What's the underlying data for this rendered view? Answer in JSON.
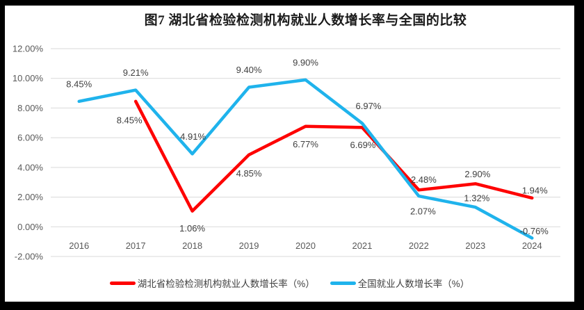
{
  "title": "图7 湖北省检验检测机构就业人数增长率与全国的比较",
  "colors": {
    "page_background": "#000000",
    "chart_background": "#FFFFFF",
    "gridline": "#D9D9D9",
    "axis_text": "#595959",
    "label_text": "#404040",
    "title_text": "#1A1A1A"
  },
  "chart_data": {
    "type": "line",
    "title": "图7 湖北省检验检测机构就业人数增长率与全国的比较",
    "categories": [
      "2016",
      "2017",
      "2018",
      "2019",
      "2020",
      "2021",
      "2022",
      "2023",
      "2024"
    ],
    "series": [
      {
        "name": "湖北省检验检测机构就业人数增长率（%）",
        "color": "#FE0000",
        "values": [
          null,
          8.45,
          1.06,
          4.85,
          6.77,
          6.69,
          2.48,
          2.9,
          1.94
        ],
        "label_offsets": [
          null,
          [
            -9,
            27
          ],
          [
            0,
            25
          ],
          [
            0,
            27
          ],
          [
            0,
            26
          ],
          [
            1,
            25
          ],
          [
            7,
            -15
          ],
          [
            3,
            -14
          ],
          [
            4,
            -11
          ]
        ]
      },
      {
        "name": "全国就业人数增长率（%）",
        "color": "#1FB3EC",
        "values": [
          8.45,
          9.21,
          4.91,
          9.4,
          9.9,
          6.97,
          2.07,
          1.32,
          -0.76
        ],
        "label_offsets": [
          [
            0,
            -25
          ],
          [
            0,
            -25
          ],
          [
            1,
            -25
          ],
          [
            0,
            -25
          ],
          [
            0,
            -25
          ],
          [
            9,
            -25
          ],
          [
            6,
            22
          ],
          [
            2,
            -13
          ],
          [
            3,
            -10
          ]
        ]
      }
    ],
    "ylim": [
      -2,
      12
    ],
    "yticks": [
      -2,
      0,
      2,
      4,
      6,
      8,
      10,
      12
    ],
    "ytick_labels": [
      "-2.00%",
      "0.00%",
      "2.00%",
      "4.00%",
      "6.00%",
      "8.00%",
      "10.00%",
      "12.00%"
    ],
    "value_label_format": "0.00%",
    "grid": "horizontal",
    "legend_position": "bottom"
  }
}
